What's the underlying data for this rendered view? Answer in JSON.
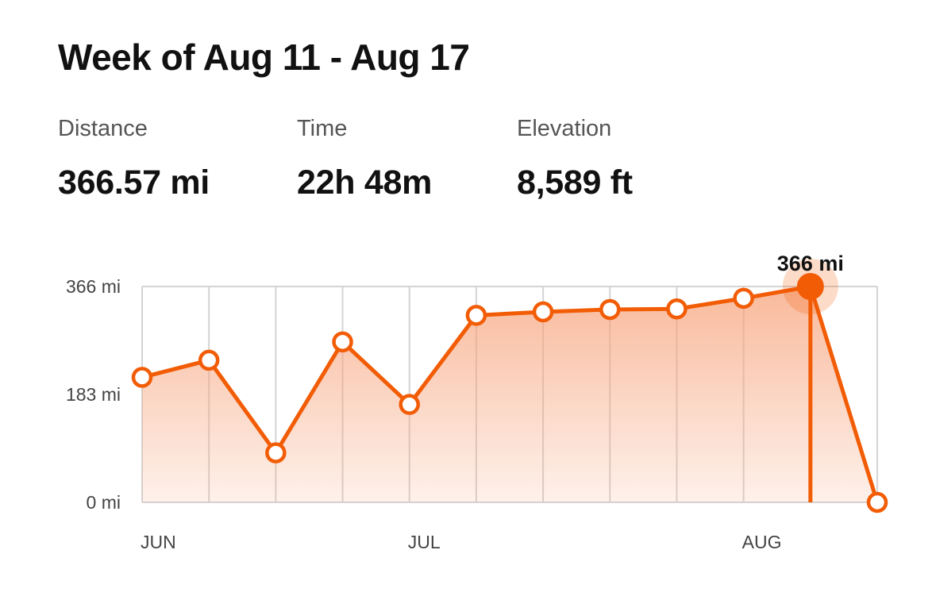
{
  "header": {
    "title": "Week of Aug 11 - Aug 17"
  },
  "stats": {
    "distance": {
      "label": "Distance",
      "value": "366.57 mi"
    },
    "time": {
      "label": "Time",
      "value": "22h 48m"
    },
    "elevation": {
      "label": "Elevation",
      "value": "8,589 ft"
    }
  },
  "colors": {
    "accent": "#f25c05",
    "grid": "#d4d4d4",
    "area_top": "#f7a27a",
    "area_bottom": "#ffffff"
  },
  "chart_data": {
    "type": "area",
    "unit": "mi",
    "ylim": [
      0,
      366
    ],
    "y_ticks": [
      {
        "value": 0,
        "label": "0 mi"
      },
      {
        "value": 183,
        "label": "183 mi"
      },
      {
        "value": 366,
        "label": "366 mi"
      }
    ],
    "x_month_labels": [
      {
        "week_index": 0,
        "label": "JUN"
      },
      {
        "week_index": 4,
        "label": "JUL"
      },
      {
        "week_index": 9,
        "label": "AUG"
      }
    ],
    "series": [
      {
        "values": [
          212,
          241,
          84,
          272,
          166,
          317,
          323,
          327,
          328,
          346,
          366,
          0
        ]
      }
    ],
    "selected_index": 10,
    "selected_label": "366 mi",
    "grid": true
  }
}
